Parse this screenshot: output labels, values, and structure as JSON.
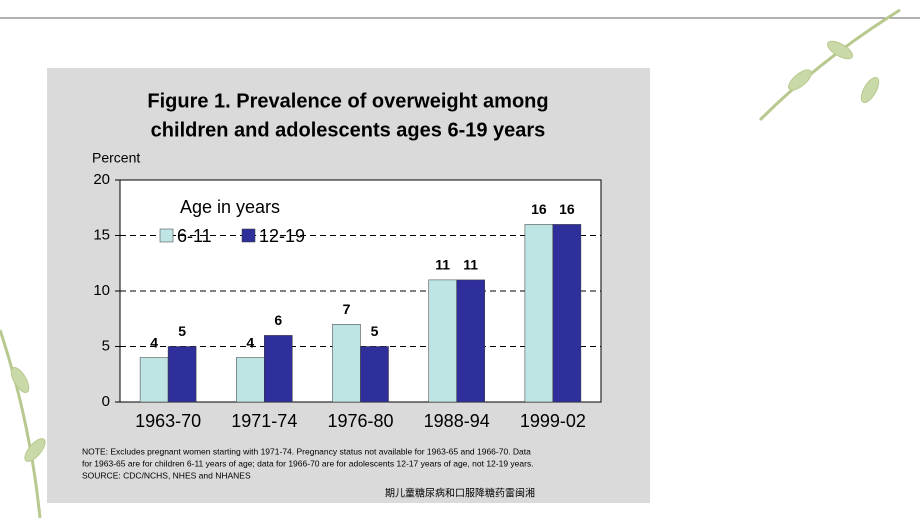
{
  "chart_data": {
    "type": "bar",
    "title": [
      "Figure 1. Prevalence of overweight among",
      "children and adolescents ages 6-19 years"
    ],
    "y_label": "Percent",
    "legend_title": "Age in years",
    "categories": [
      "1963-70",
      "1971-74",
      "1976-80",
      "1988-94",
      "1999-02"
    ],
    "series": [
      {
        "name": "6-11",
        "color": "#bfe4e4",
        "values": [
          4,
          4,
          7,
          11,
          16
        ]
      },
      {
        "name": "12-19",
        "color": "#2f2f9c",
        "values": [
          5,
          6,
          5,
          11,
          16
        ]
      }
    ],
    "ylim": [
      0,
      20
    ],
    "yticks": [
      0,
      5,
      10,
      15,
      20
    ],
    "grid": true,
    "note": [
      "NOTE:  Excludes pregnant women starting with 1971-74.  Pregnancy status not available for 1963-65 and 1966-70.  Data",
      "for 1963-65 are for children 6-11 years of age; data for 1966-70 are for adolescents 12-17 years of age, not 12-19 years.",
      "SOURCE: CDC/NCHS, NHES and NHANES"
    ]
  },
  "footer": "期儿童糖尿病和口服降糖药雷闽湘"
}
